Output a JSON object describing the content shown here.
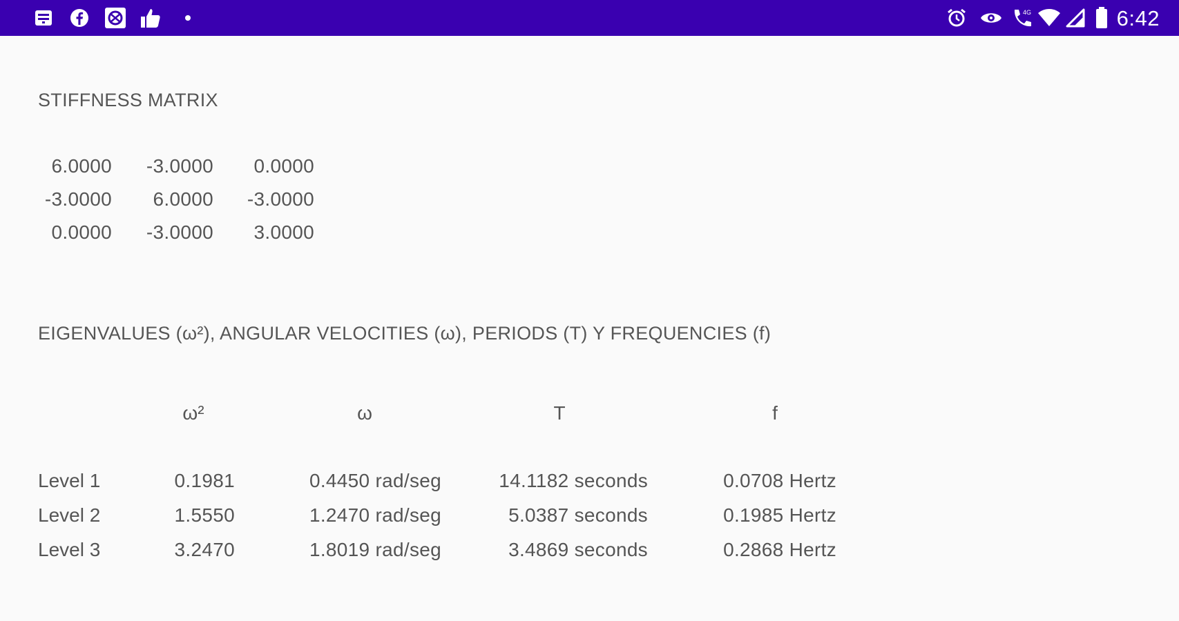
{
  "status_bar": {
    "time": "6:42",
    "left_icons": [
      "notification-square-icon",
      "facebook-icon",
      "vpn-app-icon",
      "thumbs-up-icon",
      "dot-icon"
    ],
    "right_icons": [
      "alarm-icon",
      "eye-icon",
      "volte-call-icon",
      "wifi-icon",
      "signal-icon",
      "battery-icon"
    ],
    "color": "#3a00b0"
  },
  "stiffness": {
    "title": "STIFFNESS MATRIX",
    "rows": [
      [
        "6.0000",
        "-3.0000",
        "0.0000"
      ],
      [
        "-3.0000",
        "6.0000",
        "-3.0000"
      ],
      [
        "0.0000",
        "-3.0000",
        "3.0000"
      ]
    ]
  },
  "eigen": {
    "title": "EIGENVALUES (ω²), ANGULAR VELOCITIES (ω), PERIODS (T) Y FREQUENCIES (f)",
    "headers": [
      "ω²",
      "ω",
      "T",
      "f"
    ],
    "rows": [
      {
        "label": "Level 1",
        "w2": "0.1981",
        "w": "0.4450 rad/seg",
        "T": "14.1182 seconds",
        "f": "0.0708 Hertz"
      },
      {
        "label": "Level 2",
        "w2": "1.5550",
        "w": "1.2470 rad/seg",
        "T": "5.0387 seconds",
        "f": "0.1985 Hertz"
      },
      {
        "label": "Level 3",
        "w2": "3.2470",
        "w": "1.8019 rad/seg",
        "T": "3.4869 seconds",
        "f": "0.2868 Hertz"
      }
    ]
  }
}
